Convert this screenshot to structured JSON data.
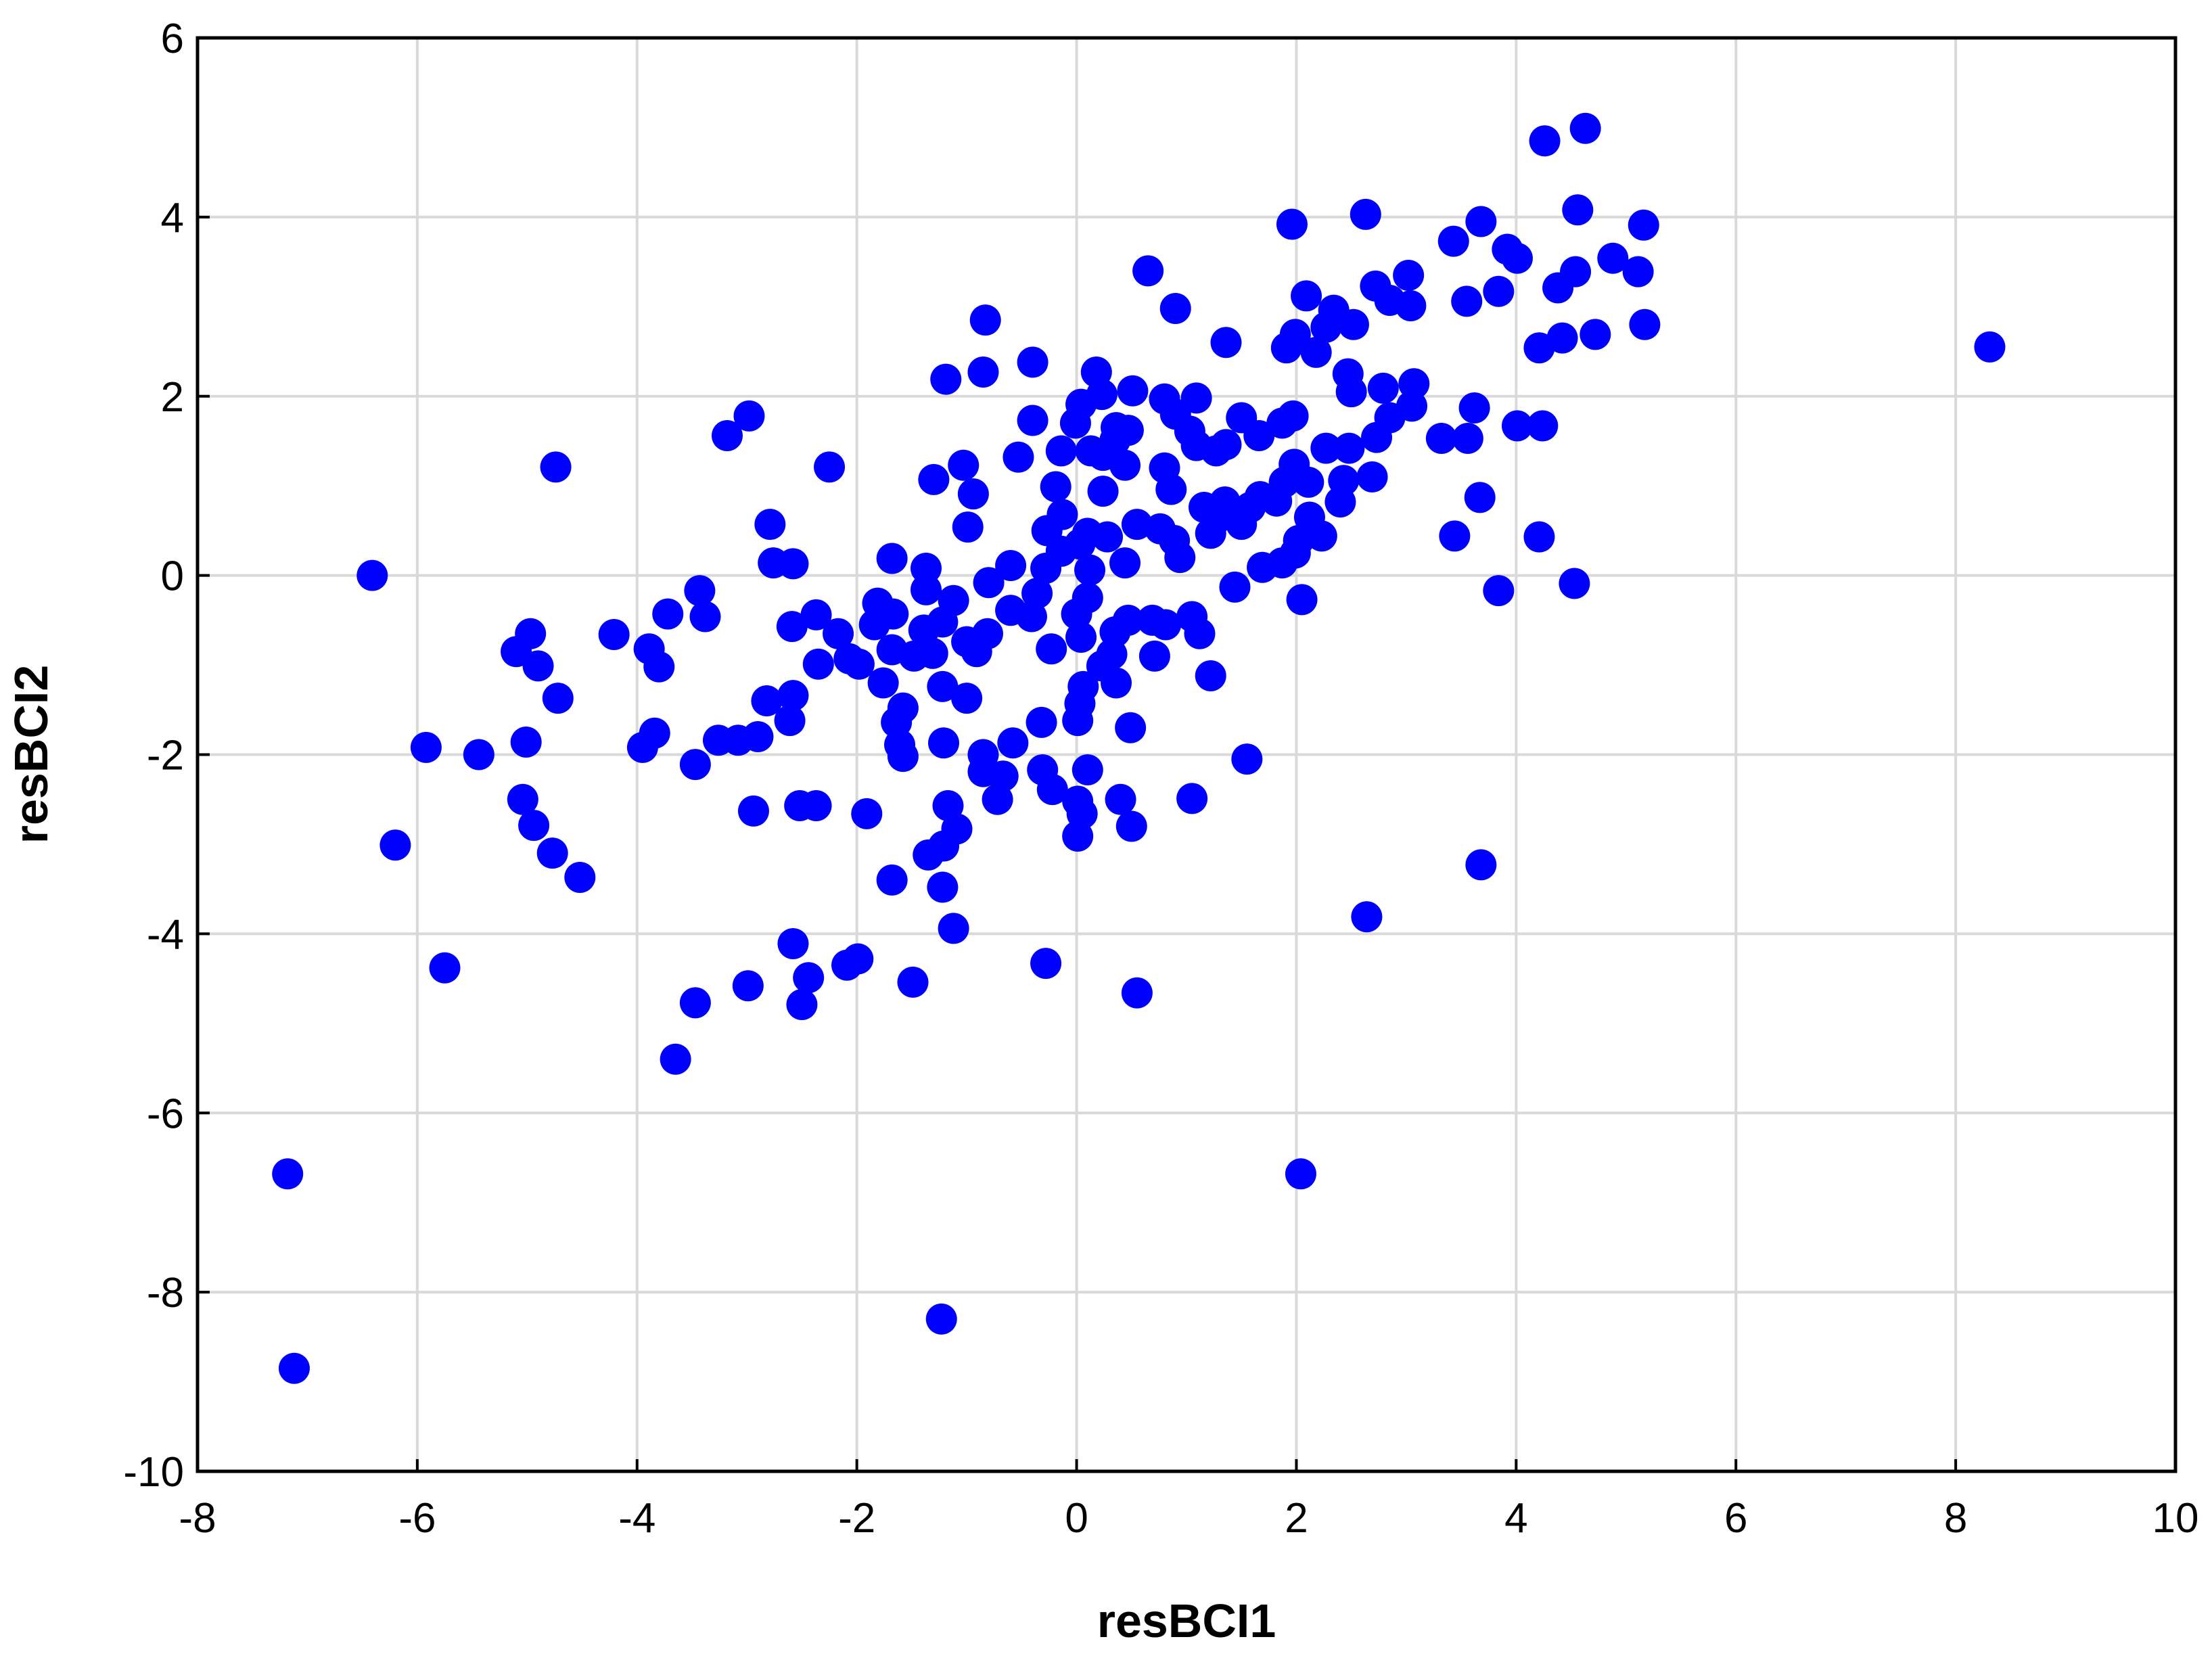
{
  "chart_data": {
    "type": "scatter",
    "x_label": "resBCI1",
    "y_label": "resBCI2",
    "xlim": [
      -8,
      10
    ],
    "ylim": [
      -10,
      6
    ],
    "xticks": [
      -8,
      -6,
      -4,
      -2,
      0,
      2,
      4,
      6,
      8,
      10
    ],
    "yticks": [
      -10,
      -8,
      -6,
      -4,
      -2,
      0,
      2,
      4,
      6
    ],
    "grid": true,
    "series": [
      {
        "color": "#0000ff",
        "x": [
          4.63,
          4.26,
          4.56,
          3.68,
          2.63,
          1.96,
          5.16,
          3.43,
          3.92,
          4.01,
          4.88,
          4.54,
          4.38,
          5.11,
          3.84,
          3.55,
          3.02,
          2.72,
          3.04,
          2.85,
          2.09,
          2.34,
          2.52,
          2.27,
          5.17,
          4.72,
          4.42,
          4.21,
          8.31,
          0.65,
          0.9,
          1.36,
          -0.83,
          -0.4,
          -0.85,
          -1.19,
          0.18,
          0.51,
          1.91,
          1.99,
          2.18,
          2.47,
          2.5,
          2.79,
          3.07,
          3.05,
          2.85,
          2.73,
          3.62,
          4.01,
          4.24,
          3.32,
          3.56,
          3.67,
          3.44,
          4.21,
          3.84,
          4.53,
          -2.98,
          -3.18,
          -4.74,
          -2.25,
          -6.41,
          -2.79,
          -2.76,
          -2.58,
          -3.43,
          -3.72,
          -3.38,
          -4.21,
          -4.97,
          -5.1,
          -3.89,
          -3.8,
          -4.9,
          -4.72,
          -5.01,
          -5.92,
          -5.44,
          -3.84,
          -3.95,
          -3.47,
          -3.26,
          -3.08,
          -2.9,
          -2.82,
          -2.58,
          -2.61,
          -2.94,
          -2.52,
          -2.37,
          -1.91,
          -5.04,
          -4.94,
          -4.77,
          -4.52,
          -6.2,
          -5.75,
          -2.58,
          -2.44,
          -2.5,
          -2.99,
          -3.47,
          -3.65,
          -2.09,
          -1.99,
          -1.49,
          -0.28,
          0.55,
          -1.68,
          -1.35,
          -1.21,
          -1.09,
          -1.17,
          -1.22,
          -1.12,
          -7.18,
          -7.12,
          -1.23,
          2.04,
          2.64,
          3.68,
          1.55,
          1.05,
          0.5,
          0.4,
          0.01,
          0.05,
          0.01,
          -0.22,
          -0.31,
          0.1,
          0.49,
          0.01,
          -0.32,
          -0.58,
          -0.72,
          -0.67,
          -0.85,
          -0.85,
          -1.58,
          -1.61,
          -1.21,
          -1.58,
          -1.64,
          -1.76,
          -1.22,
          -1.0,
          -1.98,
          -2.07,
          -2.35,
          -2.17,
          -2.37,
          -2.59,
          -1.81,
          -1.84,
          -1.67,
          -1.68,
          -1.48,
          -1.39,
          -1.22,
          -1.12,
          -1.37,
          -1.37,
          -1.68,
          -1.31,
          -1.0,
          -0.81,
          -0.91,
          -0.8,
          -0.6,
          -0.6,
          -0.41,
          -0.36,
          -0.28,
          -0.23,
          0.04,
          0,
          0.1,
          0.12,
          0.03,
          -0.14,
          -0.27,
          -0.13,
          0.1,
          0.28,
          0.44,
          0.35,
          0.47,
          0.69,
          0.81,
          1.05,
          1.12,
          0.71,
          0.32,
          0.23,
          0.36,
          0.06,
          0.03,
          1.22,
          1.44,
          1.69,
          1.87,
          1.99,
          2.05,
          2.02,
          2.23,
          2.12,
          2.4,
          2.43,
          2.69,
          2.48,
          2.27,
          2.11,
          1.98,
          1.89,
          1.82,
          1.67,
          1.58,
          1.5,
          1.35,
          1.27,
          1.16,
          1.22,
          0.94,
          0.89,
          0.76,
          0.55,
          0.86,
          0.8,
          0.44,
          0.24,
          0.24,
          0.13,
          0.35,
          0.47,
          0.36,
          0.04,
          0.23,
          -0.01,
          -0.14,
          -0.19,
          -0.4,
          -0.53,
          -0.94,
          -0.99,
          -1.03,
          -1.3,
          0.8,
          1.09,
          0.9,
          1.5,
          1.66,
          1.87,
          1.97,
          1.36,
          1.27,
          1.09,
          1.03
        ],
        "values": [
          4.99,
          4.85,
          4.08,
          3.95,
          4.03,
          3.92,
          3.91,
          3.73,
          3.64,
          3.54,
          3.54,
          3.39,
          3.21,
          3.39,
          3.17,
          3.06,
          3.35,
          3.23,
          3.01,
          3.07,
          3.12,
          2.96,
          2.8,
          2.77,
          2.8,
          2.69,
          2.65,
          2.54,
          2.55,
          3.4,
          2.98,
          2.6,
          2.85,
          2.38,
          2.27,
          2.19,
          2.27,
          2.06,
          2.54,
          2.69,
          2.49,
          2.25,
          2.05,
          2.09,
          2.14,
          1.89,
          1.76,
          1.54,
          1.87,
          1.67,
          1.67,
          1.53,
          1.53,
          0.87,
          0.44,
          0.43,
          -0.17,
          -0.09,
          1.78,
          1.56,
          1.21,
          1.21,
          0,
          0.57,
          0.14,
          0.13,
          -0.17,
          -0.43,
          -0.46,
          -0.66,
          -0.65,
          -0.85,
          -0.82,
          -1.02,
          -1.01,
          -1.37,
          -1.86,
          -1.92,
          -2.0,
          -1.76,
          -1.92,
          -2.11,
          -1.84,
          -1.84,
          -1.8,
          -1.4,
          -1.34,
          -1.62,
          -2.63,
          -2.57,
          -2.57,
          -2.66,
          -2.5,
          -2.79,
          -3.1,
          -3.37,
          -3.01,
          -4.38,
          -4.11,
          -4.49,
          -4.79,
          -4.58,
          -4.77,
          -5.4,
          -4.35,
          -4.28,
          -4.54,
          -4.33,
          -4.66,
          -3.4,
          -3.12,
          -3.02,
          -2.83,
          -2.57,
          -3.48,
          -3.94,
          -6.68,
          -8.85,
          -8.3,
          -6.68,
          -3.81,
          -3.23,
          -2.05,
          -2.49,
          -2.8,
          -2.5,
          -2.91,
          -2.66,
          -2.52,
          -2.39,
          -2.17,
          -2.17,
          -1.7,
          -1.62,
          -1.64,
          -1.87,
          -2.5,
          -2.24,
          -2.19,
          -2.0,
          -2.02,
          -1.89,
          -1.87,
          -1.48,
          -1.64,
          -1.2,
          -1.24,
          -1.37,
          -0.99,
          -0.93,
          -0.99,
          -0.65,
          -0.44,
          -0.57,
          -0.31,
          -0.55,
          -0.43,
          -0.83,
          -0.9,
          -0.61,
          -0.52,
          -0.28,
          -0.16,
          0.08,
          0.19,
          -0.87,
          -0.74,
          -0.65,
          -0.85,
          -0.08,
          0.11,
          -0.39,
          -0.46,
          -0.2,
          0.08,
          -0.82,
          -0.69,
          -0.43,
          -0.25,
          0.06,
          0.35,
          0.27,
          0.5,
          0.68,
          0.47,
          0.43,
          0.14,
          -0.63,
          -0.5,
          -0.5,
          -0.55,
          -0.46,
          -0.65,
          -0.9,
          -0.88,
          -1.01,
          -1.2,
          -1.24,
          -1.43,
          -1.12,
          -0.13,
          0.09,
          0.14,
          0.25,
          -0.27,
          0.39,
          0.44,
          0.65,
          0.82,
          1.06,
          1.1,
          1.42,
          1.42,
          1.04,
          1.24,
          1.04,
          0.83,
          0.88,
          0.76,
          0.57,
          0.82,
          0.63,
          0.76,
          0.47,
          0.2,
          0.39,
          0.52,
          0.57,
          0.96,
          1.2,
          1.23,
          0.94,
          1.34,
          1.39,
          1.51,
          1.62,
          1.65,
          1.91,
          2.02,
          1.7,
          1.39,
          0.99,
          1.73,
          1.32,
          0.91,
          0.54,
          1.23,
          1.07,
          1.97,
          1.98,
          1.8,
          1.76,
          1.56,
          1.7,
          1.78,
          1.46,
          1.39,
          1.45,
          1.61
        ]
      }
    ]
  }
}
